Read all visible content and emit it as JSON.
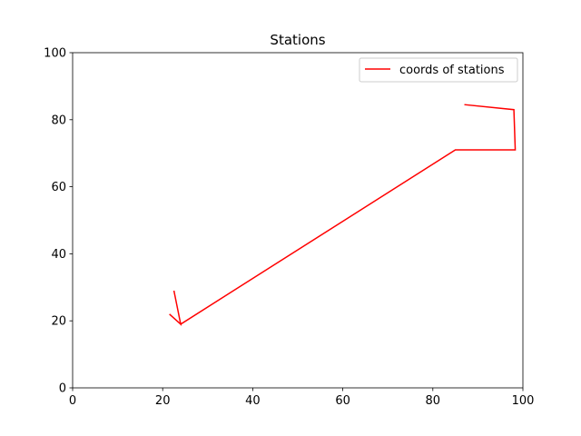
{
  "chart_data": {
    "type": "line",
    "title": "Stations",
    "xlabel": "",
    "ylabel": "",
    "xlim": [
      0,
      100
    ],
    "ylim": [
      0,
      100
    ],
    "xticks": [
      0,
      20,
      40,
      60,
      80,
      100
    ],
    "yticks": [
      0,
      20,
      40,
      60,
      80,
      100
    ],
    "grid": false,
    "legend_position": "top-right",
    "series": [
      {
        "name": "coords of stations",
        "color": "#ff0000",
        "x": [
          22.5,
          24.0,
          21.5,
          24.0,
          85.0,
          98.3,
          98.0,
          87.0
        ],
        "y": [
          29.0,
          19.0,
          22.0,
          19.0,
          71.0,
          71.0,
          83.0,
          84.5
        ]
      }
    ]
  }
}
